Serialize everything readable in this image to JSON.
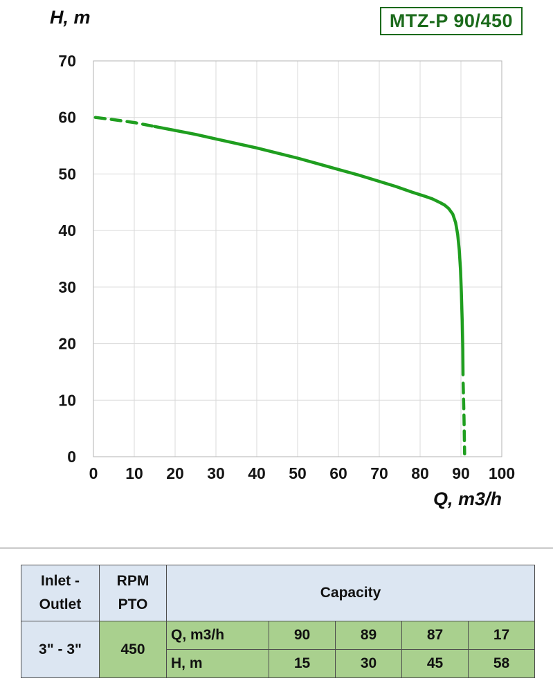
{
  "chart_data": {
    "type": "line",
    "title": "MTZ-P 90/450",
    "xlabel": "Q, m3/h",
    "ylabel": "H, m",
    "xlim": [
      0,
      100
    ],
    "ylim": [
      0,
      70
    ],
    "xticks": [
      0,
      10,
      20,
      30,
      40,
      50,
      60,
      70,
      80,
      90,
      100
    ],
    "yticks": [
      0,
      10,
      20,
      30,
      40,
      50,
      60,
      70
    ],
    "grid": true,
    "legend": false,
    "curve_color": "#1f9e1f",
    "series": [
      {
        "name": "H vs Q pump curve",
        "segments": [
          {
            "style": "dashed",
            "points": [
              [
                0.5,
                60
              ],
              [
                5,
                59.6
              ],
              [
                10,
                59.1
              ],
              [
                15,
                58.4
              ]
            ]
          },
          {
            "style": "solid",
            "points": [
              [
                15,
                58.4
              ],
              [
                20,
                57.7
              ],
              [
                25,
                57.0
              ],
              [
                30,
                56.2
              ],
              [
                35,
                55.4
              ],
              [
                40,
                54.6
              ],
              [
                45,
                53.7
              ],
              [
                50,
                52.8
              ],
              [
                55,
                51.8
              ],
              [
                60,
                50.8
              ],
              [
                65,
                49.8
              ],
              [
                70,
                48.7
              ],
              [
                74,
                47.8
              ],
              [
                78,
                46.8
              ],
              [
                81,
                46.1
              ],
              [
                83,
                45.6
              ],
              [
                85,
                44.9
              ],
              [
                86,
                44.5
              ],
              [
                87,
                43.9
              ],
              [
                88,
                42.9
              ],
              [
                88.7,
                41.4
              ],
              [
                89.2,
                39.3
              ],
              [
                89.6,
                36.5
              ],
              [
                89.9,
                33
              ],
              [
                90.1,
                29
              ],
              [
                90.3,
                24
              ],
              [
                90.45,
                19
              ],
              [
                90.5,
                14.5
              ]
            ]
          },
          {
            "style": "dashed",
            "points": [
              [
                90.55,
                13
              ],
              [
                90.75,
                7
              ],
              [
                90.9,
                0.5
              ]
            ]
          }
        ]
      }
    ],
    "key_points": {
      "Q": [
        90,
        89,
        87,
        17
      ],
      "H": [
        15,
        30,
        45,
        58
      ]
    }
  },
  "table": {
    "inlet_outlet_header": [
      "Inlet -",
      "Outlet"
    ],
    "rpm_header": [
      "RPM",
      "PTO"
    ],
    "capacity_header": "Capacity",
    "inlet_outlet_value": "3\" - 3\"",
    "rpm_value": "450",
    "q_row_label": "Q, m3/h",
    "h_row_label": "H, m",
    "q_values": [
      "90",
      "89",
      "87",
      "17"
    ],
    "h_values": [
      "15",
      "30",
      "45",
      "58"
    ]
  },
  "colors": {
    "curve_green": "#1f9e1f",
    "title_green": "#1b6a1b",
    "grid_gray": "#d9d9d9",
    "plot_border_gray": "#b3b3b3",
    "header_blue": "#dce6f2",
    "cell_green": "#a9d08e",
    "table_border": "#4d4d4d"
  }
}
